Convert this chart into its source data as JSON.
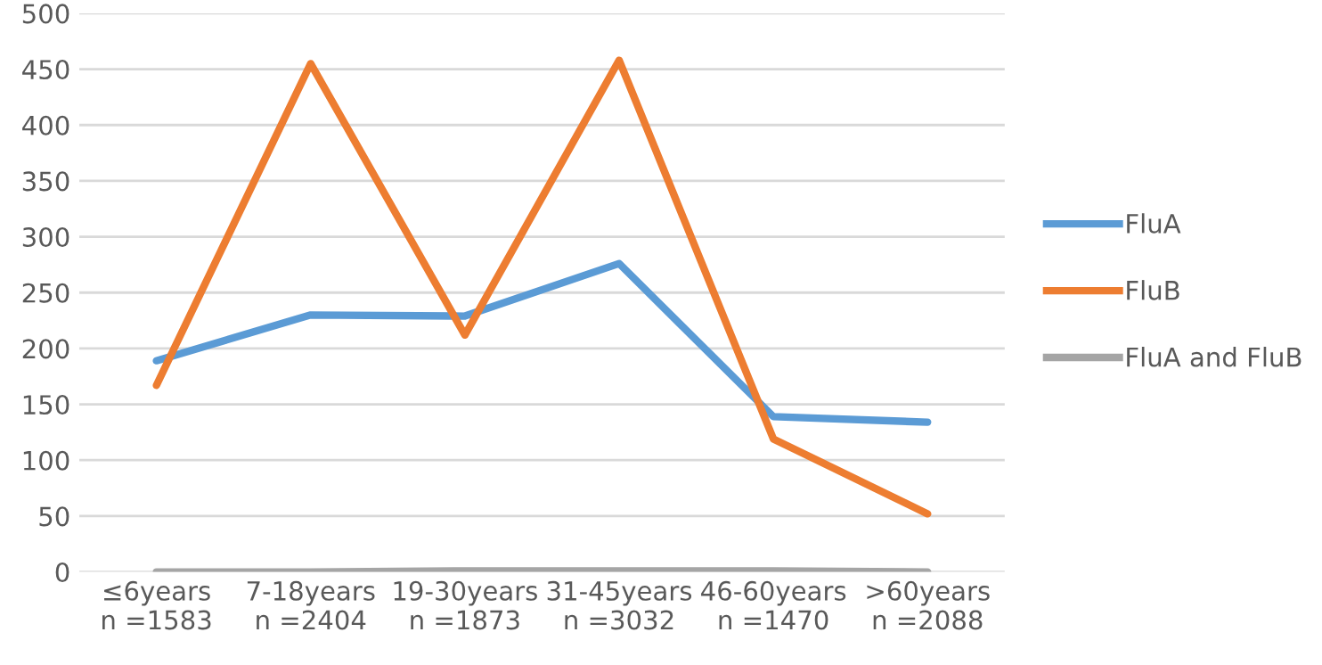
{
  "chart_data": {
    "type": "line",
    "categories": [
      "≤6years\nn =1583",
      "7-18years\nn =2404",
      "19-30years\nn =1873",
      "31-45years\nn =3032",
      "46-60years\nn =1470",
      ">60years\nn =2088"
    ],
    "series": [
      {
        "name": "FluA",
        "color": "#5b9bd5",
        "values": [
          189,
          230,
          229,
          276,
          139,
          134
        ]
      },
      {
        "name": "FluB",
        "color": "#ed7d31",
        "values": [
          167,
          455,
          212,
          458,
          119,
          52
        ]
      },
      {
        "name": "FluA and FluB",
        "color": "#a5a5a5",
        "values": [
          0,
          0,
          1,
          1,
          1,
          0
        ]
      }
    ],
    "ylim": [
      0,
      500
    ],
    "yticks": [
      0,
      50,
      100,
      150,
      200,
      250,
      300,
      350,
      400,
      450,
      500
    ],
    "grid": "y",
    "legend": "right",
    "marker": "none",
    "line_style": "solid"
  }
}
